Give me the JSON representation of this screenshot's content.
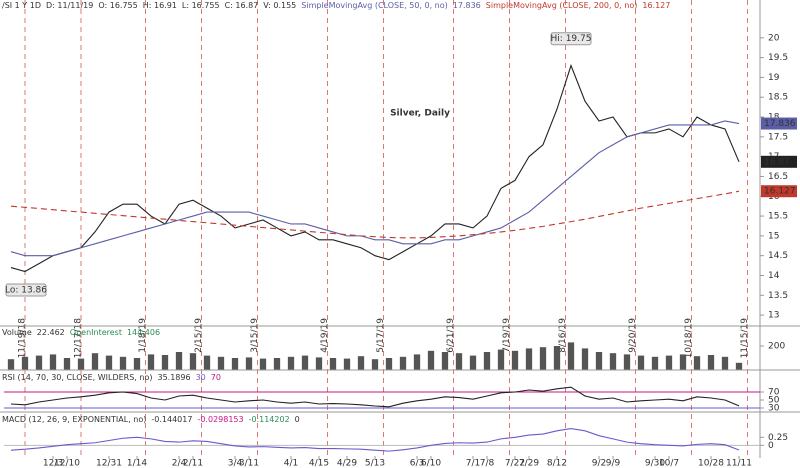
{
  "header": {
    "symbol": "/SI 1 Y 1D",
    "fields": [
      "D: 11/11/19",
      "O: 16.755",
      "H: 16.91",
      "L: 16.755",
      "C: 16.87",
      "V: 0.155"
    ]
  },
  "chart_data": [
    {
      "type": "line",
      "title": "Silver, Daily",
      "series": [
        {
          "color": "#222222",
          "values": [
            14.2,
            14.1,
            14.3,
            14.5,
            14.6,
            14.7,
            15.1,
            15.6,
            15.8,
            15.8,
            15.5,
            15.3,
            15.8,
            15.9,
            15.7,
            15.5,
            15.2,
            15.3,
            15.4,
            15.2,
            15.0,
            15.1,
            14.9,
            14.9,
            14.8,
            14.7,
            14.5,
            14.4,
            14.6,
            14.8,
            15.0,
            15.3,
            15.3,
            15.2,
            15.5,
            16.2,
            16.4,
            17.0,
            17.3,
            18.2,
            19.3,
            18.4,
            17.9,
            18.0,
            17.5,
            17.6,
            17.6,
            17.7,
            17.5,
            18.0,
            17.8,
            17.7,
            16.87
          ]
        },
        {
          "name": "SimpleMovingAvg (CLOSE, 50, 0, no)",
          "color": "#5b5ea6",
          "values": [
            14.6,
            14.5,
            14.5,
            14.5,
            14.6,
            14.7,
            14.8,
            14.9,
            15.0,
            15.1,
            15.2,
            15.3,
            15.4,
            15.5,
            15.6,
            15.6,
            15.6,
            15.6,
            15.5,
            15.4,
            15.3,
            15.3,
            15.2,
            15.1,
            15.0,
            15.0,
            14.9,
            14.9,
            14.8,
            14.8,
            14.8,
            14.9,
            14.9,
            15.0,
            15.1,
            15.2,
            15.4,
            15.6,
            15.9,
            16.2,
            16.5,
            16.8,
            17.1,
            17.3,
            17.5,
            17.6,
            17.7,
            17.8,
            17.8,
            17.8,
            17.8,
            17.9,
            17.836
          ]
        },
        {
          "name": "SimpleMovingAvg (CLOSE, 200, 0, no)",
          "color": "#c0392b",
          "dashed": true,
          "values": [
            15.75,
            15.72,
            15.69,
            15.66,
            15.63,
            15.6,
            15.57,
            15.54,
            15.51,
            15.48,
            15.45,
            15.42,
            15.39,
            15.36,
            15.33,
            15.3,
            15.27,
            15.24,
            15.21,
            15.18,
            15.15,
            15.12,
            15.09,
            15.06,
            15.03,
            15.0,
            14.98,
            14.96,
            14.95,
            14.95,
            14.96,
            14.98,
            15.0,
            15.03,
            15.06,
            15.1,
            15.14,
            15.19,
            15.24,
            15.3,
            15.36,
            15.42,
            15.49,
            15.56,
            15.63,
            15.7,
            15.76,
            15.82,
            15.88,
            15.94,
            16.0,
            16.06,
            16.127
          ]
        }
      ],
      "annotations": [
        {
          "text": "Hi: 19.75",
          "x": 40,
          "y": 19.75
        },
        {
          "text": "Lo: 13.86",
          "x": 0.5,
          "y": 13.86
        }
      ],
      "expiries": [
        {
          "x": 1,
          "label": "11/19/18"
        },
        {
          "x": 5,
          "label": "12/17/18"
        },
        {
          "x": 9.6,
          "label": "1/18/19"
        },
        {
          "x": 13.6,
          "label": "2/15/19"
        },
        {
          "x": 17.6,
          "label": "3/15/19"
        },
        {
          "x": 22.6,
          "label": "4/19/19"
        },
        {
          "x": 26.6,
          "label": "5/17/19"
        },
        {
          "x": 31.6,
          "label": "6/21/19"
        },
        {
          "x": 35.6,
          "label": "7/19/19"
        },
        {
          "x": 39.6,
          "label": "8/16/19"
        },
        {
          "x": 44.6,
          "label": "9/20/19"
        },
        {
          "x": 48.6,
          "label": "10/18/19"
        },
        {
          "x": 52.6,
          "label": "11/15/19"
        }
      ],
      "expiry_color": "#d9534f",
      "xlim": [
        -0.5,
        53.5
      ],
      "ylim": [
        12.75,
        20.5
      ],
      "yticks": [
        13,
        13.5,
        14,
        14.5,
        15,
        15.5,
        16,
        16.5,
        17,
        17.5,
        18,
        18.5,
        19,
        19.5,
        20
      ]
    },
    {
      "type": "bar",
      "legend": [
        "Volume",
        "22.462",
        "OpenInterest",
        "144,406"
      ],
      "series": [
        {
          "color": "#555555",
          "values": [
            90,
            110,
            120,
            130,
            100,
            95,
            140,
            120,
            110,
            100,
            130,
            125,
            150,
            140,
            120,
            110,
            100,
            105,
            95,
            100,
            110,
            120,
            105,
            100,
            95,
            115,
            90,
            100,
            110,
            130,
            160,
            150,
            140,
            120,
            150,
            170,
            160,
            180,
            190,
            200,
            230,
            180,
            150,
            140,
            130,
            120,
            110,
            120,
            130,
            115,
            125,
            110,
            60
          ]
        }
      ],
      "xlim": [
        -0.5,
        53.5
      ],
      "ylim": [
        0,
        250
      ],
      "yticks": [
        200
      ]
    },
    {
      "type": "line",
      "legend": [
        "RSI (14, 70, 30, CLOSE, WILDERS, no)",
        "30",
        "70"
      ],
      "series": [
        {
          "color": "#222222",
          "values": [
            40,
            38,
            45,
            50,
            55,
            58,
            62,
            68,
            70,
            66,
            55,
            50,
            60,
            62,
            55,
            50,
            45,
            48,
            50,
            45,
            42,
            45,
            40,
            41,
            40,
            38,
            35,
            33,
            42,
            48,
            52,
            58,
            56,
            52,
            60,
            68,
            70,
            75,
            72,
            78,
            82,
            60,
            52,
            55,
            45,
            48,
            50,
            52,
            48,
            58,
            55,
            50,
            35.1896
          ]
        }
      ],
      "levels": [
        {
          "value": 70,
          "color": "#c71585"
        },
        {
          "value": 30,
          "color": "#6a5acd"
        }
      ],
      "xlim": [
        -0.5,
        53.5
      ],
      "ylim": [
        20,
        90
      ],
      "yticks": [
        30,
        50,
        70
      ]
    },
    {
      "type": "line",
      "legend": [
        "MACD (12, 26, 9, EXPONENTIAL, no)",
        "-0.0298153",
        "-0.114202",
        "0"
      ],
      "series": [
        {
          "color": "#6a5acd",
          "values": [
            -0.15,
            -0.12,
            -0.08,
            -0.03,
            0.02,
            0.05,
            0.08,
            0.15,
            0.22,
            0.25,
            0.2,
            0.12,
            0.1,
            0.14,
            0.12,
            0.05,
            -0.02,
            -0.05,
            -0.04,
            -0.06,
            -0.08,
            -0.07,
            -0.1,
            -0.1,
            -0.11,
            -0.12,
            -0.15,
            -0.18,
            -0.14,
            -0.08,
            0.0,
            0.06,
            0.08,
            0.07,
            0.1,
            0.2,
            0.25,
            0.32,
            0.35,
            0.45,
            0.52,
            0.45,
            0.3,
            0.2,
            0.1,
            0.05,
            0.02,
            0.0,
            -0.02,
            0.03,
            0.05,
            0.02,
            -0.144017
          ]
        }
      ],
      "xlim": [
        -0.5,
        53.5
      ],
      "ylim": [
        -0.3,
        0.6
      ],
      "yticks": [
        0,
        0.25
      ],
      "xticks": [
        {
          "value": 3,
          "label": "12/3"
        },
        {
          "value": 4,
          "label": "12/10"
        },
        {
          "value": 7,
          "label": "12/31"
        },
        {
          "value": 9,
          "label": "1/14"
        },
        {
          "value": 12,
          "label": "2/4"
        },
        {
          "value": 13,
          "label": "2/11"
        },
        {
          "value": 16,
          "label": "3/4"
        },
        {
          "value": 17,
          "label": "3/11"
        },
        {
          "value": 20,
          "label": "4/1"
        },
        {
          "value": 22,
          "label": "4/15"
        },
        {
          "value": 24,
          "label": "4/29"
        },
        {
          "value": 26,
          "label": "5/13"
        },
        {
          "value": 29,
          "label": "6/3"
        },
        {
          "value": 30,
          "label": "6/10"
        },
        {
          "value": 33,
          "label": "7/1"
        },
        {
          "value": 34,
          "label": "7/8"
        },
        {
          "value": 36,
          "label": "7/22"
        },
        {
          "value": 37,
          "label": "7/29"
        },
        {
          "value": 39,
          "label": "8/12"
        },
        {
          "value": 42,
          "label": "9/2"
        },
        {
          "value": 43,
          "label": "9/9"
        },
        {
          "value": 46,
          "label": "9/30"
        },
        {
          "value": 47,
          "label": "10/7"
        },
        {
          "value": 50,
          "label": "10/28"
        },
        {
          "value": 52,
          "label": "11/11"
        }
      ]
    }
  ]
}
